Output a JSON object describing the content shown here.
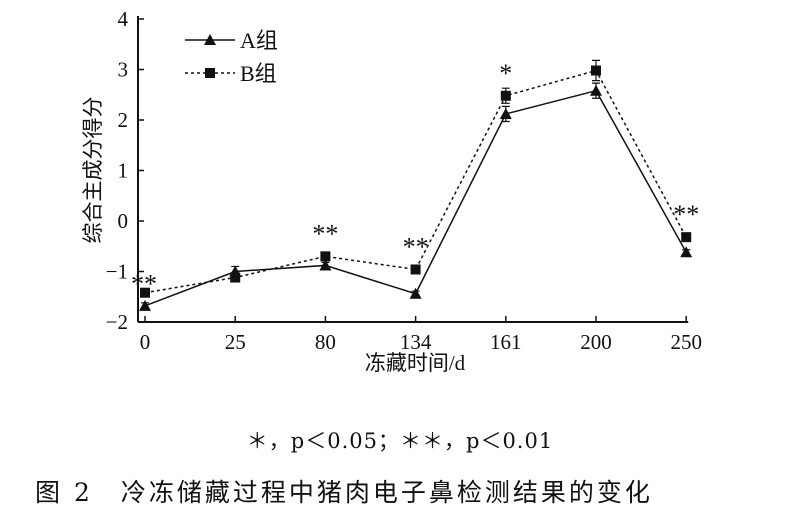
{
  "chart_data": {
    "type": "line",
    "xlabel": "冻藏时间/d",
    "ylabel": "综合主成分得分",
    "categories": [
      "0",
      "25",
      "80",
      "134",
      "161",
      "200",
      "250"
    ],
    "ylim": [
      -2,
      4
    ],
    "yticks": [
      "-2",
      "-1",
      "0",
      "1",
      "2",
      "3",
      "4"
    ],
    "grid": false,
    "legend_position": "top-left",
    "series": [
      {
        "name": "A组",
        "style": "solid",
        "marker": "triangle",
        "values": [
          -1.68,
          -1.0,
          -0.88,
          -1.44,
          2.12,
          2.58,
          -0.62
        ],
        "errors": [
          0.06,
          0.1,
          0.06,
          0.05,
          0.15,
          0.15,
          0.05
        ]
      },
      {
        "name": "B组",
        "style": "dotted",
        "marker": "square",
        "values": [
          -1.42,
          -1.12,
          -0.7,
          -0.96,
          2.48,
          2.98,
          -0.32
        ],
        "errors": [
          0.05,
          0.06,
          0.06,
          0.08,
          0.15,
          0.2,
          0.06
        ]
      }
    ],
    "annotations": [
      "**",
      "",
      "**",
      "**",
      "*",
      "",
      "**"
    ]
  },
  "footnote": "＊，p＜0.05；＊＊，p＜0.01",
  "caption": "图 2　冷冻储藏过程中猪肉电子鼻检测结果的变化"
}
